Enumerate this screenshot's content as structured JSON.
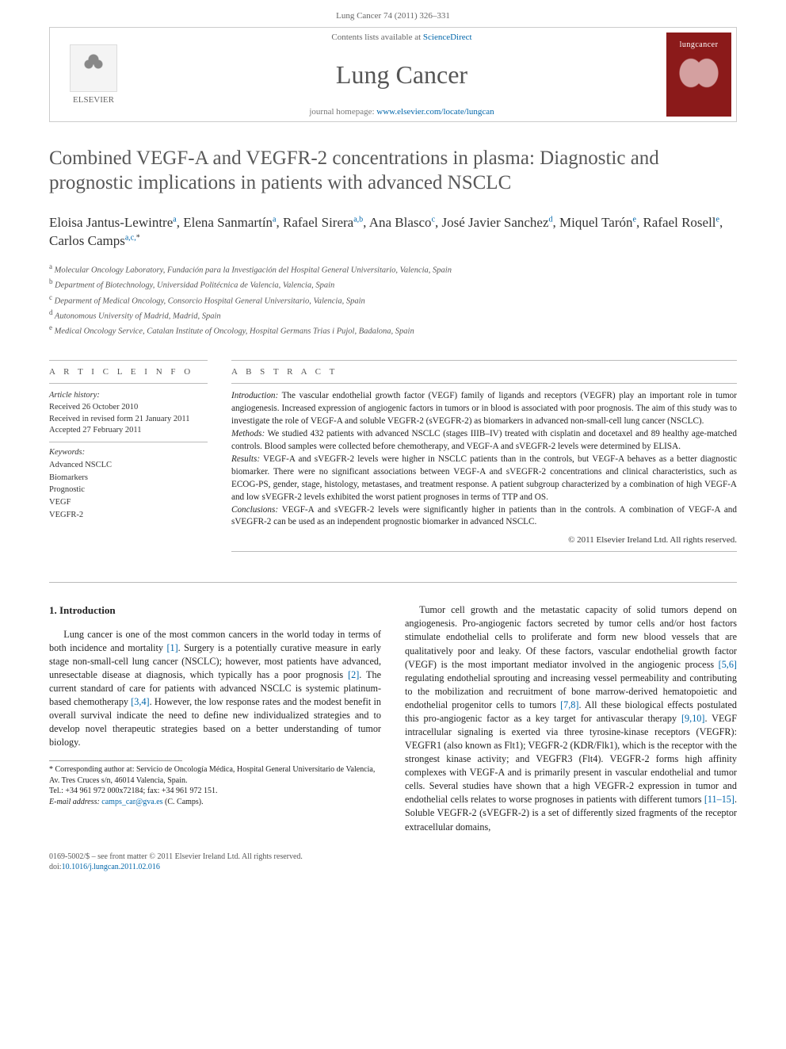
{
  "header": {
    "running_head": "Lung Cancer 74 (2011) 326–331",
    "contents_line_pre": "Contents lists available at ",
    "contents_link": "ScienceDirect",
    "journal_name": "Lung Cancer",
    "homepage_pre": "journal homepage: ",
    "homepage_url": "www.elsevier.com/locate/lungcan",
    "elsevier_label": "ELSEVIER",
    "cover_label": "lungcancer"
  },
  "article": {
    "title": "Combined VEGF-A and VEGFR-2 concentrations in plasma: Diagnostic and prognostic implications in patients with advanced NSCLC",
    "authors_html": "Eloisa Jantus-Lewintre<sup>a</sup>, Elena Sanmartín<sup>a</sup>, Rafael Sirera<sup>a,b</sup>, Ana Blasco<sup>c</sup>, José Javier Sanchez<sup>d</sup>, Miquel Tarón<sup>e</sup>, Rafael Rosell<sup>e</sup>, Carlos Camps<sup>a,c,</sup><sup class='star'>*</sup>",
    "affiliations": [
      {
        "label": "a",
        "text": "Molecular Oncology Laboratory, Fundación para la Investigación del Hospital General Universitario, Valencia, Spain"
      },
      {
        "label": "b",
        "text": "Department of Biotechnology, Universidad Politécnica de Valencia, Valencia, Spain"
      },
      {
        "label": "c",
        "text": "Deparment of Medical Oncology, Consorcio Hospital General Universitario, Valencia, Spain"
      },
      {
        "label": "d",
        "text": "Autonomous University of Madrid, Madrid, Spain"
      },
      {
        "label": "e",
        "text": "Medical Oncology Service, Catalan Institute of Oncology, Hospital Germans Trias i Pujol, Badalona, Spain"
      }
    ]
  },
  "info": {
    "label": "A R T I C L E   I N F O",
    "history_label": "Article history:",
    "received": "Received 26 October 2010",
    "revised": "Received in revised form 21 January 2011",
    "accepted": "Accepted 27 February 2011",
    "keywords_label": "Keywords:",
    "keywords": [
      "Advanced NSCLC",
      "Biomarkers",
      "Prognostic",
      "VEGF",
      "VEGFR-2"
    ]
  },
  "abstract": {
    "label": "A B S T R A C T",
    "sections": [
      {
        "heading": "Introduction:",
        "text": "The vascular endothelial growth factor (VEGF) family of ligands and receptors (VEGFR) play an important role in tumor angiogenesis. Increased expression of angiogenic factors in tumors or in blood is associated with poor prognosis. The aim of this study was to investigate the role of VEGF-A and soluble VEGFR-2 (sVEGFR-2) as biomarkers in advanced non-small-cell lung cancer (NSCLC)."
      },
      {
        "heading": "Methods:",
        "text": "We studied 432 patients with advanced NSCLC (stages IIIB–IV) treated with cisplatin and docetaxel and 89 healthy age-matched controls. Blood samples were collected before chemotherapy, and VEGF-A and sVEGFR-2 levels were determined by ELISA."
      },
      {
        "heading": "Results:",
        "text": "VEGF-A and sVEGFR-2 levels were higher in NSCLC patients than in the controls, but VEGF-A behaves as a better diagnostic biomarker. There were no significant associations between VEGF-A and sVEGFR-2 concentrations and clinical characteristics, such as ECOG-PS, gender, stage, histology, metastases, and treatment response. A patient subgroup characterized by a combination of high VEGF-A and low sVEGFR-2 levels exhibited the worst patient prognoses in terms of TTP and OS."
      },
      {
        "heading": "Conclusions:",
        "text": "VEGF-A and sVEGFR-2 levels were significantly higher in patients than in the controls. A combination of VEGF-A and sVEGFR-2 can be used as an independent prognostic biomarker in advanced NSCLC."
      }
    ],
    "copyright": "© 2011 Elsevier Ireland Ltd. All rights reserved."
  },
  "body": {
    "section_number": "1.",
    "section_title": "Introduction",
    "p1_pre": "Lung cancer is one of the most common cancers in the world today in terms of both incidence and mortality ",
    "ref1": "[1]",
    "p1_mid1": ". Surgery is a potentially curative measure in early stage non-small-cell lung cancer (NSCLC); however, most patients have advanced, unresectable disease at diagnosis, which typically has a poor prognosis ",
    "ref2": "[2]",
    "p1_mid2": ". The current standard of care for patients with advanced NSCLC is systemic platinum-based chemotherapy ",
    "ref34": "[3,4]",
    "p1_end": ". However, the low response rates and the modest benefit in overall survival indicate the need to define new individualized strategies and to develop novel therapeutic strategies based on a better understanding of tumor biology.",
    "p2_pre": "Tumor cell growth and the metastatic capacity of solid tumors depend on angiogenesis. Pro-angiogenic factors secreted by tumor cells and/or host factors stimulate endothelial cells to proliferate and form new blood vessels that are qualitatively poor and leaky. Of these factors, vascular endothelial growth factor (VEGF) is the most important mediator involved in the angiogenic process ",
    "ref56": "[5,6]",
    "p2_mid1": " regulating endothelial sprouting and increasing vessel permeability and contributing to the mobilization and recruitment of bone marrow-derived hematopoietic and endothelial progenitor cells to tumors ",
    "ref78": "[7,8]",
    "p2_mid2": ". All these biological effects postulated this pro-angiogenic factor as a key target for antivascular therapy ",
    "ref910": "[9,10]",
    "p2_mid3": ". VEGF intracellular signaling is exerted via three tyrosine-kinase receptors (VEGFR): VEGFR1 (also known as Flt1); VEGFR-2 (KDR/Flk1), which is the receptor with the strongest kinase activity; and VEGFR3 (Flt4). VEGFR-2 forms high affinity complexes with VEGF-A and is primarily present in vascular endothelial and tumor cells. Several studies have shown that a high VEGFR-2 expression in tumor and endothelial cells relates to worse prognoses in patients with different tumors ",
    "ref1115": "[11–15]",
    "p2_end": ". Soluble VEGFR-2 (sVEGFR-2) is a set of differently sized fragments of the receptor extracellular domains,"
  },
  "footnote": {
    "corr_label": "* Corresponding author at: ",
    "corr_addr": "Servicio de Oncología Médica, Hospital General Universitario de Valencia, Av. Tres Cruces s/n, 46014 Valencia, Spain.",
    "tel_label": "Tel.: ",
    "tel": "+34 961 972 000x72184",
    "fax_label": "; fax: ",
    "fax": "+34 961 972 151.",
    "email_label": "E-mail address: ",
    "email": "camps_car@gva.es",
    "email_who": " (C. Camps)."
  },
  "footer": {
    "issn_line": "0169-5002/$ – see front matter © 2011 Elsevier Ireland Ltd. All rights reserved.",
    "doi_label": "doi:",
    "doi": "10.1016/j.lungcan.2011.02.016"
  },
  "colors": {
    "link": "#0066aa",
    "heading_gray": "#585858",
    "cover_bg": "#8b1a1a"
  }
}
